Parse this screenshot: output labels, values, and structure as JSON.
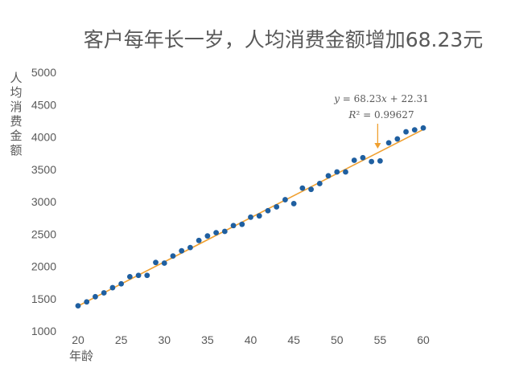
{
  "chart_data": {
    "type": "scatter",
    "title": "客户每年长一岁，人均消费金额增加68.23元",
    "xlabel": "年龄",
    "ylabel": "人均消费金额",
    "xlim": [
      20,
      60
    ],
    "ylim": [
      1000,
      5000
    ],
    "x_ticks": [
      "20",
      "25",
      "30",
      "35",
      "40",
      "45",
      "50",
      "55",
      "60"
    ],
    "y_ticks": [
      "1000",
      "1500",
      "2000",
      "2500",
      "3000",
      "3500",
      "4000",
      "4500",
      "5000"
    ],
    "grid": false,
    "colors": {
      "points": "#1f5fa0",
      "trendline": "#f0a030",
      "arrow": "#f0a030",
      "text": "#595959"
    },
    "series": [
      {
        "x": [
          20,
          21,
          22,
          23,
          24,
          25,
          26,
          27,
          28,
          29,
          30,
          31,
          32,
          33,
          34,
          35,
          36,
          37,
          38,
          39,
          40,
          41,
          42,
          43,
          44,
          45,
          46,
          47,
          48,
          49,
          50,
          51,
          52,
          53,
          54,
          55,
          56,
          57,
          58,
          59,
          60
        ],
        "y": [
          1390,
          1450,
          1530,
          1590,
          1670,
          1730,
          1840,
          1860,
          1860,
          2060,
          2050,
          2160,
          2240,
          2290,
          2400,
          2470,
          2520,
          2540,
          2630,
          2650,
          2760,
          2780,
          2860,
          2920,
          3030,
          2970,
          3210,
          3190,
          3280,
          3400,
          3460,
          3460,
          3640,
          3680,
          3620,
          3630,
          3910,
          3970,
          4080,
          4110,
          4140
        ]
      }
    ],
    "trendline": {
      "slope": 68.23,
      "intercept": 22.31,
      "x_range": [
        20,
        60
      ]
    },
    "annotation": {
      "equation": "𝑦 = 68.23𝑥 + 22.31",
      "r_squared": "𝑅² = 0.99627",
      "arrow_to_x": 55
    }
  }
}
